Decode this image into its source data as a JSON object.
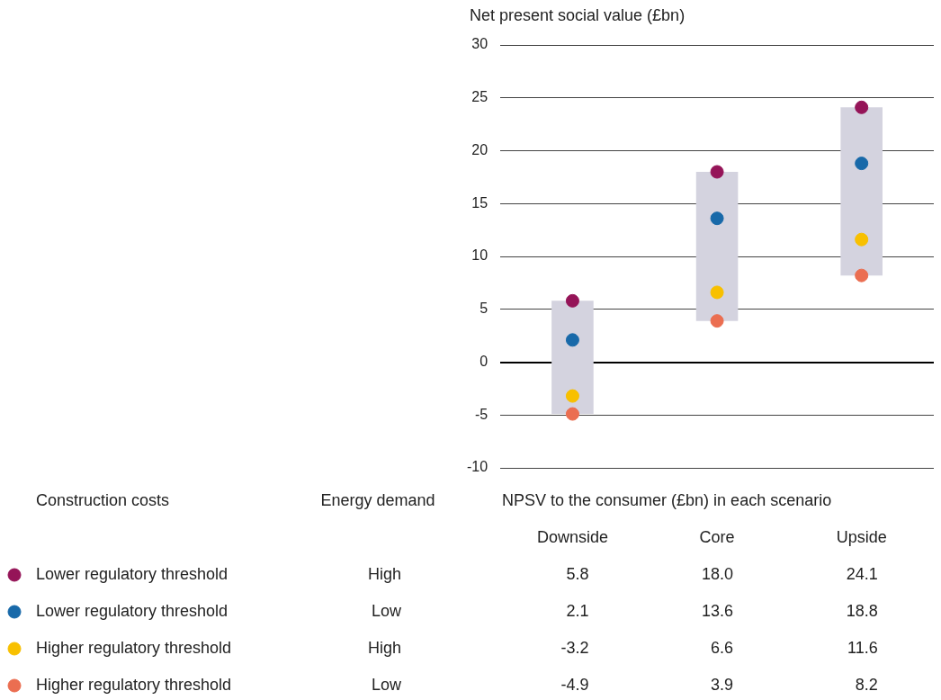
{
  "chart_data": {
    "type": "bar",
    "ylabel": "Net present social value (£bn)",
    "legend_title": "Construction costs",
    "categories": [
      "Downside",
      "Core",
      "Upside"
    ],
    "base": [
      -4.9,
      3.9,
      8.2
    ],
    "values": [
      10.7,
      14.1,
      15.9
    ],
    "color": "#d4d3df",
    "series": [
      {
        "type": "scatter",
        "name": "Lower regulatory threshold",
        "color": "#951458",
        "x": [
          "Downside",
          "Core",
          "Upside"
        ],
        "values": [
          5.8,
          18.0,
          24.1
        ],
        "value_labels": [
          "5.8",
          "18.0",
          "24.1"
        ]
      },
      {
        "type": "scatter",
        "name": "Lower regulatory threshold",
        "color": "#1869a9",
        "x": [
          "Downside",
          "Core",
          "Upside"
        ],
        "values": [
          2.1,
          13.6,
          18.8
        ],
        "value_labels": [
          "2.1",
          "13.6",
          "18.8"
        ]
      },
      {
        "type": "scatter",
        "name": "Higher regulatory threshold",
        "color": "#f8c000",
        "x": [
          "Downside",
          "Core",
          "Upside"
        ],
        "values": [
          -3.2,
          6.6,
          11.6
        ],
        "value_labels": [
          "-3.2",
          "6.6",
          "11.6"
        ]
      },
      {
        "type": "scatter",
        "name": "Higher regulatory threshold",
        "color": "#eb6e51",
        "x": [
          "Downside",
          "Core",
          "Upside"
        ],
        "values": [
          -4.9,
          3.9,
          8.2
        ],
        "value_labels": [
          "-4.9",
          "3.9",
          "8.2"
        ]
      }
    ],
    "annotations": [
      "Energy demand",
      "NPSV to the consumer (£bn) in each scenario",
      "High",
      "Low",
      "High",
      "Low"
    ],
    "ylim": [
      -10,
      30
    ],
    "yticks": [
      -10,
      -5,
      0,
      5,
      10,
      15,
      20,
      25,
      30
    ],
    "grid": "y",
    "legend": "bottom",
    "marker": "circle",
    "tick_labels": "y"
  }
}
